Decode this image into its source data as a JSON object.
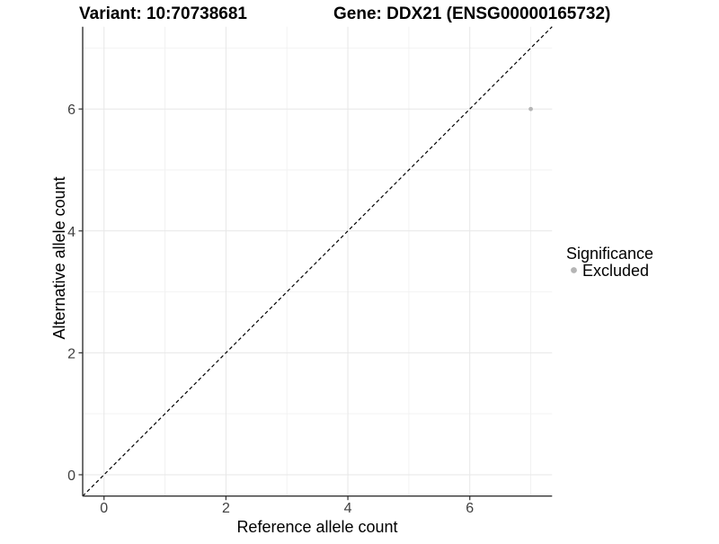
{
  "chart_data": {
    "type": "scatter",
    "title_parts": {
      "variant": "Variant: 10:70738681",
      "gene": "Gene: DDX21 (ENSG00000165732)"
    },
    "xlabel": "Reference allele count",
    "ylabel": "Alternative allele count",
    "xlim": [
      -0.35,
      7.35
    ],
    "ylim": [
      -0.35,
      7.35
    ],
    "xticks": [
      0,
      2,
      4,
      6
    ],
    "yticks": [
      0,
      2,
      4,
      6
    ],
    "xtick_labels": [
      "0",
      "2",
      "4",
      "6"
    ],
    "ytick_labels": [
      "0",
      "2",
      "4",
      "6"
    ],
    "x_minor_ticks": [
      1,
      3,
      5,
      7
    ],
    "y_minor_ticks": [
      1,
      3,
      5,
      7
    ],
    "grid": true,
    "points": [
      {
        "x": 7,
        "y": 6,
        "significance": "Excluded"
      }
    ],
    "reference_line": {
      "equation": "y = x",
      "style": "dashed",
      "color": "#000000"
    },
    "legend": {
      "title": "Significance",
      "position": "right",
      "items": [
        {
          "label": "Excluded",
          "color": "#b5b5b5",
          "marker": "circle"
        }
      ]
    },
    "colors": {
      "point": "#b5b5b5",
      "grid_major": "#e7e7e7",
      "grid_minor": "#f2f2f2",
      "axis_line": "#333333",
      "tick_text": "#404040",
      "background": "#ffffff"
    }
  }
}
